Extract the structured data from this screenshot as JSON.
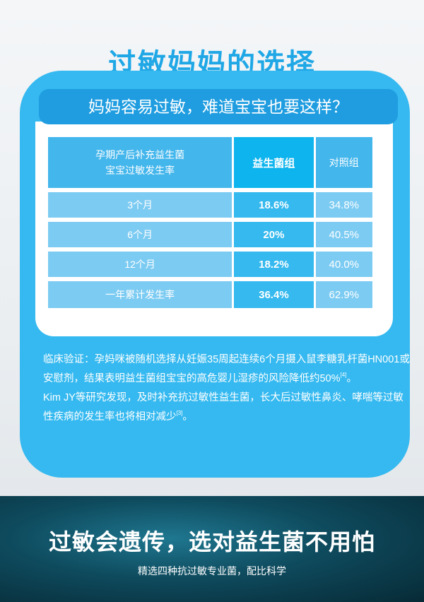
{
  "title": "过敏妈妈的选择",
  "subtitle": "妈妈容易过敏，难道宝宝也要这样？",
  "table": {
    "header": [
      "孕期产后补充益生菌\n宝宝过敏发生率",
      "益生菌组",
      "对照组"
    ],
    "rows": [
      [
        "3个月",
        "18.6%",
        "34.8%"
      ],
      [
        "6个月",
        "20%",
        "40.5%"
      ],
      [
        "12个月",
        "18.2%",
        "40.0%"
      ],
      [
        "一年累计发生率",
        "36.4%",
        "62.9%"
      ]
    ]
  },
  "paragraph1": {
    "text": "临床验证：孕妈咪被随机选择从妊娠35周起连续6个月摄入鼠李糖乳杆菌HN001或安慰剂，结果表明益生菌组宝宝的高危婴儿湿疹的风险降低约50%",
    "ref": "[4]",
    "end": "。"
  },
  "paragraph2": {
    "text": " Kim JY等研究发现，及时补充抗过敏性益生菌，长大后过敏性鼻炎、哮喘等过敏性疾病的发生率也将相对减少",
    "ref": "[3]",
    "end": "。"
  },
  "banner": {
    "title": "过敏会遗传，选对益生菌不用怕",
    "subtitle": "精选四种抗过敏专业菌，配比科学"
  },
  "colors": {
    "accent": "#35b9f0",
    "title": "#1fa7e6",
    "dark_band": "#0e4a5d"
  }
}
